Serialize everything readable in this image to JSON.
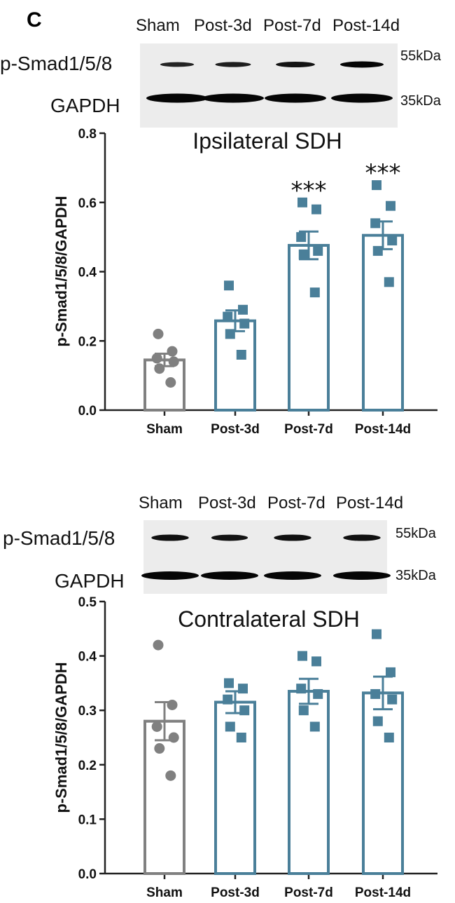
{
  "panel_label": "C",
  "colors": {
    "sham": "#808080",
    "treated": "#4a7f99",
    "axis": "#222222"
  },
  "panels": [
    {
      "blot": {
        "lanes": [
          "Sham",
          "Post-3d",
          "Post-7d",
          "Post-14d"
        ],
        "rows": [
          {
            "name": "p-Smad1/5/8",
            "kda": "55kDa",
            "intensity": [
              0.45,
              0.55,
              0.75,
              1.0
            ]
          },
          {
            "name": "GAPDH",
            "kda": "35kDa",
            "intensity": [
              1.0,
              1.0,
              1.0,
              1.0
            ]
          }
        ]
      }
    },
    {
      "blot": {
        "lanes": [
          "Sham",
          "Post-3d",
          "Post-7d",
          "Post-14d"
        ],
        "rows": [
          {
            "name": "p-Smad1/5/8",
            "kda": "55kDa",
            "intensity": [
              0.8,
              0.75,
              0.8,
              0.8
            ]
          },
          {
            "name": "GAPDH",
            "kda": "35kDa",
            "intensity": [
              1.0,
              1.0,
              1.0,
              1.0
            ]
          }
        ]
      }
    }
  ],
  "chart_data": [
    {
      "type": "bar",
      "title": "Ipsilateral SDH",
      "ylabel": "p-Smad1/5/8/GAPDH",
      "categories": [
        "Sham",
        "Post-3d",
        "Post-7d",
        "Post-14d"
      ],
      "values": [
        0.145,
        0.258,
        0.476,
        0.505
      ],
      "sem": [
        0.018,
        0.03,
        0.04,
        0.04
      ],
      "points": [
        [
          0.22,
          0.17,
          0.15,
          0.14,
          0.12,
          0.08
        ],
        [
          0.36,
          0.29,
          0.27,
          0.25,
          0.22,
          0.16
        ],
        [
          0.6,
          0.58,
          0.5,
          0.46,
          0.45,
          0.34
        ],
        [
          0.65,
          0.59,
          0.54,
          0.49,
          0.46,
          0.37
        ]
      ],
      "markers": [
        "circle",
        "square",
        "square",
        "square"
      ],
      "significance": [
        "",
        "",
        "***",
        "***"
      ],
      "ylim": [
        0,
        0.8
      ],
      "yticks": [
        "0.0",
        "0.2",
        "0.4",
        "0.6",
        "0.8"
      ],
      "ytick_values": [
        0,
        0.2,
        0.4,
        0.6,
        0.8
      ],
      "grid": false
    },
    {
      "type": "bar",
      "title": "Contralateral SDH",
      "ylabel": "p-Smad1/5/8/GAPDH",
      "categories": [
        "Sham",
        "Post-3d",
        "Post-7d",
        "Post-14d"
      ],
      "values": [
        0.28,
        0.315,
        0.335,
        0.332
      ],
      "sem": [
        0.035,
        0.02,
        0.023,
        0.03
      ],
      "points": [
        [
          0.42,
          0.31,
          0.27,
          0.25,
          0.23,
          0.18
        ],
        [
          0.35,
          0.34,
          0.32,
          0.3,
          0.27,
          0.25
        ],
        [
          0.4,
          0.39,
          0.34,
          0.33,
          0.3,
          0.27
        ],
        [
          0.44,
          0.37,
          0.33,
          0.32,
          0.28,
          0.25
        ]
      ],
      "markers": [
        "circle",
        "square",
        "square",
        "square"
      ],
      "significance": [
        "",
        "",
        "",
        ""
      ],
      "ylim": [
        0,
        0.5
      ],
      "yticks": [
        "0.0",
        "0.1",
        "0.2",
        "0.3",
        "0.4",
        "0.5"
      ],
      "ytick_values": [
        0,
        0.1,
        0.2,
        0.3,
        0.4,
        0.5
      ],
      "grid": false
    }
  ]
}
